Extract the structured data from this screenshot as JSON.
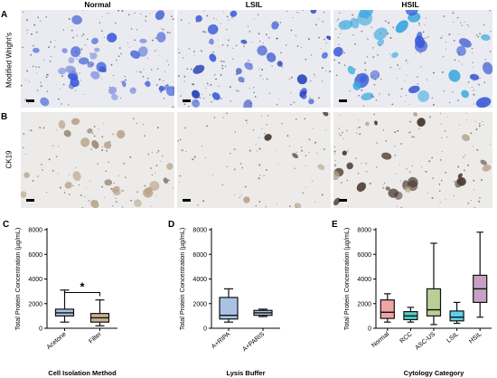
{
  "panels": {
    "A": {
      "letter": "A",
      "row_label": "Modified Wright's"
    },
    "B": {
      "letter": "B",
      "row_label": "CK19"
    },
    "C": {
      "letter": "C"
    },
    "D": {
      "letter": "D"
    },
    "E": {
      "letter": "E"
    }
  },
  "columns": [
    "Normal",
    "LSIL",
    "HSIL"
  ],
  "colors": {
    "wright_stain": "#3b5bd6",
    "wright_stain_hsil": "#3aa7e0",
    "ck19_stain": "#b9a48a",
    "ck19_dark": "#4a3a30",
    "acetone": "#a9c1e3",
    "filter": "#cbb38c",
    "normal": "#f0a5a5",
    "rcc": "#4fd1c5",
    "ascus": "#b9cf96",
    "lsil": "#5fd0ee",
    "hsil": "#c9a0c5"
  },
  "chart_data": [
    {
      "type": "box",
      "panel": "C",
      "ylabel": "Total Protein Concentration (µg/mL)",
      "xlabel": "Cell Isolation Method",
      "ylim": [
        0,
        8000
      ],
      "yticks": [
        0,
        2000,
        4000,
        6000,
        8000
      ],
      "categories": [
        "Acetone",
        "Filter"
      ],
      "boxes": [
        {
          "min": 500,
          "q1": 1000,
          "median": 1250,
          "q3": 1550,
          "max": 3100,
          "color_key": "acetone"
        },
        {
          "min": 200,
          "q1": 500,
          "median": 850,
          "q3": 1200,
          "max": 2300,
          "color_key": "filter"
        }
      ],
      "annotation": {
        "text": "*",
        "between": [
          0,
          1
        ],
        "y": 2900
      }
    },
    {
      "type": "box",
      "panel": "D",
      "ylabel": "Total Protein Concentration (µg/mL)",
      "xlabel": "Lysis Buffer",
      "ylim": [
        0,
        8000
      ],
      "yticks": [
        0,
        2000,
        4000,
        6000,
        8000
      ],
      "categories": [
        "A+RIPA",
        "A+PARIS"
      ],
      "boxes": [
        {
          "min": 500,
          "q1": 750,
          "median": 1050,
          "q3": 2500,
          "max": 3200,
          "color_key": "acetone"
        },
        {
          "min": 950,
          "q1": 1050,
          "median": 1250,
          "q3": 1450,
          "max": 1550,
          "color_key": "acetone"
        }
      ]
    },
    {
      "type": "box",
      "panel": "E",
      "ylabel": "Total Protein Concentration (µg/mL)",
      "xlabel": "Cytology Category",
      "ylim": [
        0,
        8000
      ],
      "yticks": [
        0,
        2000,
        4000,
        6000,
        8000
      ],
      "categories": [
        "Normal",
        "RCC",
        "ASC-US",
        "LSIL",
        "HSIL"
      ],
      "boxes": [
        {
          "min": 500,
          "q1": 800,
          "median": 1300,
          "q3": 2300,
          "max": 2800,
          "color_key": "normal"
        },
        {
          "min": 500,
          "q1": 700,
          "median": 1000,
          "q3": 1350,
          "max": 1700,
          "color_key": "rcc"
        },
        {
          "min": 300,
          "q1": 1000,
          "median": 1500,
          "q3": 3200,
          "max": 6900,
          "color_key": "ascus"
        },
        {
          "min": 400,
          "q1": 600,
          "median": 900,
          "q3": 1400,
          "max": 2100,
          "color_key": "lsil"
        },
        {
          "min": 900,
          "q1": 2100,
          "median": 3200,
          "q3": 4300,
          "max": 7800,
          "color_key": "hsil"
        }
      ]
    }
  ]
}
